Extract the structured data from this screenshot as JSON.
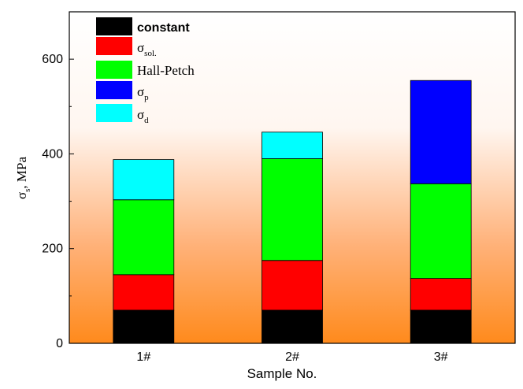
{
  "chart_data": {
    "type": "bar",
    "stacked": true,
    "categories": [
      "1#",
      "2#",
      "3#"
    ],
    "series": [
      {
        "name": "constant",
        "color": "#000000",
        "values": [
          70,
          70,
          70
        ]
      },
      {
        "name": "σsol.",
        "color": "#ff0000",
        "values": [
          75,
          105,
          67
        ]
      },
      {
        "name": "Hall-Petch",
        "color": "#00ff00",
        "values": [
          158,
          215,
          200
        ]
      },
      {
        "name": "σp",
        "color": "#0000ff",
        "values": [
          0,
          0,
          218
        ]
      },
      {
        "name": "σd",
        "color": "#00ffff",
        "values": [
          85,
          56,
          0
        ]
      }
    ],
    "xlabel": "Sample No.",
    "ylabel": "σs, MPa",
    "ylim": [
      0,
      700
    ],
    "yticks": [
      0,
      200,
      400,
      600
    ],
    "grid": false,
    "legend_position": "top-left",
    "background_gradient": [
      "#ffffff",
      "#ff8c1a"
    ]
  },
  "legend": {
    "constant": "constant",
    "sol_base": "σ",
    "sol_sub": "sol.",
    "hall": "Hall-Petch",
    "p_base": "σ",
    "p_sub": "p",
    "d_base": "σ",
    "d_sub": "d"
  },
  "axis": {
    "x_title": "Sample No.",
    "y_base": "σ",
    "y_sub": "s",
    "y_rest": ", MPa"
  }
}
